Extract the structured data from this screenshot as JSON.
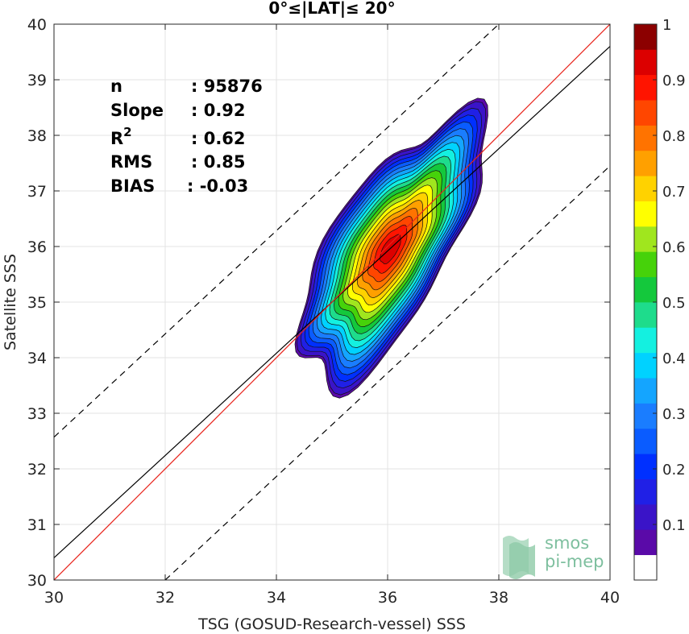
{
  "chart_data": {
    "type": "contour-scatter",
    "title": "0°≤|LAT|≤ 20°",
    "xlabel": "TSG (GOSUD-Research-vessel) SSS",
    "ylabel": "Satellite SSS",
    "xlim": [
      30,
      40
    ],
    "ylim": [
      30,
      40
    ],
    "xticks": [
      "30",
      "32",
      "34",
      "36",
      "38",
      "40"
    ],
    "yticks": [
      "30",
      "31",
      "32",
      "33",
      "34",
      "35",
      "36",
      "37",
      "38",
      "39",
      "40"
    ],
    "grid": true,
    "stats": [
      {
        "label": "n",
        "value": ": 95876"
      },
      {
        "label": "Slope",
        "value": ": 0.92"
      },
      {
        "label": "R",
        "sup": "2",
        "value": ": 0.62"
      },
      {
        "label": "RMS",
        "value": ": 0.85"
      },
      {
        "label": "BIAS",
        "value": ": -0.03"
      }
    ],
    "lines": {
      "identity": {
        "color": "#e8221a",
        "points": [
          [
            30,
            30
          ],
          [
            40,
            40
          ]
        ]
      },
      "fit": {
        "color": "#000000",
        "points": [
          [
            30,
            30.4
          ],
          [
            40,
            39.6
          ]
        ]
      },
      "upper_bound": {
        "color": "#000000",
        "dash": true,
        "points": [
          [
            30,
            32.57
          ],
          [
            38,
            40
          ]
        ]
      },
      "lower_bound": {
        "color": "#000000",
        "dash": true,
        "points": [
          [
            32,
            30
          ],
          [
            40,
            37.45
          ]
        ]
      }
    },
    "density_contours": {
      "peak": [
        36.05,
        35.95
      ],
      "levels": [
        0.025,
        0.05,
        0.1,
        0.15,
        0.2,
        0.25,
        0.3,
        0.35,
        0.4,
        0.45,
        0.5,
        0.55,
        0.6,
        0.65,
        0.7,
        0.75,
        0.8,
        0.85,
        0.9,
        0.95
      ]
    },
    "colorbar": {
      "range": [
        0,
        1
      ],
      "ticks": [
        "0.1",
        "0.2",
        "0.3",
        "0.4",
        "0.5",
        "0.6",
        "0.7",
        "0.8",
        "0.9",
        "1"
      ],
      "colors": [
        "#ffffff",
        "#5a0aa8",
        "#3a14c8",
        "#2020e6",
        "#0030ff",
        "#0a5cff",
        "#1a7dff",
        "#14a5ff",
        "#00d2ff",
        "#14f0e0",
        "#1edc8c",
        "#14c83c",
        "#46d20a",
        "#a0e61e",
        "#ffff00",
        "#ffd200",
        "#ffa000",
        "#ff7300",
        "#ff4600",
        "#ff1400",
        "#dc0000",
        "#8c0000"
      ]
    }
  },
  "logo": {
    "line1": "smos",
    "line2": "pi-mep"
  }
}
